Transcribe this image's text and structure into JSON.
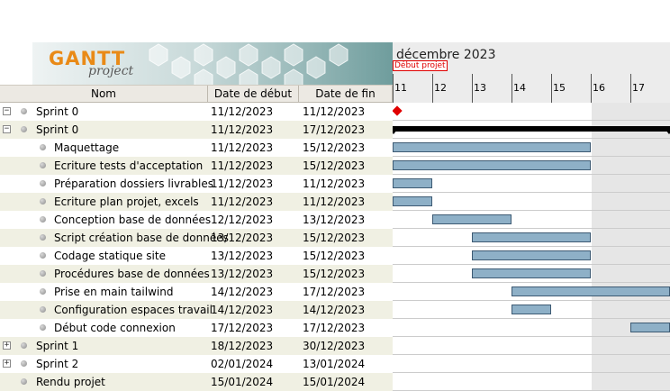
{
  "logo": {
    "main": "GANTT",
    "sub": "project"
  },
  "columns": {
    "name": "Nom",
    "start": "Date de début",
    "end": "Date de fin"
  },
  "chart": {
    "month": "décembre 2023",
    "today_label": "Début projet",
    "days": [
      "11",
      "12",
      "13",
      "14",
      "15",
      "16",
      "17"
    ]
  },
  "tasks": [
    {
      "name": "Sprint 0",
      "start": "11/12/2023",
      "end": "11/12/2023",
      "level": 0,
      "expander": "−"
    },
    {
      "name": "Sprint 0",
      "start": "11/12/2023",
      "end": "17/12/2023",
      "level": 0,
      "expander": "−"
    },
    {
      "name": "Maquettage",
      "start": "11/12/2023",
      "end": "15/12/2023",
      "level": 1
    },
    {
      "name": "Ecriture tests d'acceptation",
      "start": "11/12/2023",
      "end": "15/12/2023",
      "level": 1
    },
    {
      "name": "Préparation dossiers livrables",
      "start": "11/12/2023",
      "end": "11/12/2023",
      "level": 1
    },
    {
      "name": "Ecriture plan projet, excels",
      "start": "11/12/2023",
      "end": "11/12/2023",
      "level": 1
    },
    {
      "name": "Conception base de données",
      "start": "12/12/2023",
      "end": "13/12/2023",
      "level": 1
    },
    {
      "name": "Script création base de données",
      "start": "13/12/2023",
      "end": "15/12/2023",
      "level": 1
    },
    {
      "name": "Codage statique site",
      "start": "13/12/2023",
      "end": "15/12/2023",
      "level": 1
    },
    {
      "name": "Procédures base de données",
      "start": "13/12/2023",
      "end": "15/12/2023",
      "level": 1
    },
    {
      "name": "Prise en main tailwind",
      "start": "14/12/2023",
      "end": "17/12/2023",
      "level": 1
    },
    {
      "name": "Configuration espaces travail",
      "start": "14/12/2023",
      "end": "14/12/2023",
      "level": 1
    },
    {
      "name": "Début code connexion",
      "start": "17/12/2023",
      "end": "17/12/2023",
      "level": 1
    },
    {
      "name": "Sprint 1",
      "start": "18/12/2023",
      "end": "30/12/2023",
      "level": 0,
      "expander": "+"
    },
    {
      "name": "Sprint 2",
      "start": "02/01/2024",
      "end": "13/01/2024",
      "level": 0,
      "expander": "+"
    },
    {
      "name": "Rendu projet",
      "start": "15/01/2024",
      "end": "15/01/2024",
      "level": 0
    }
  ]
}
